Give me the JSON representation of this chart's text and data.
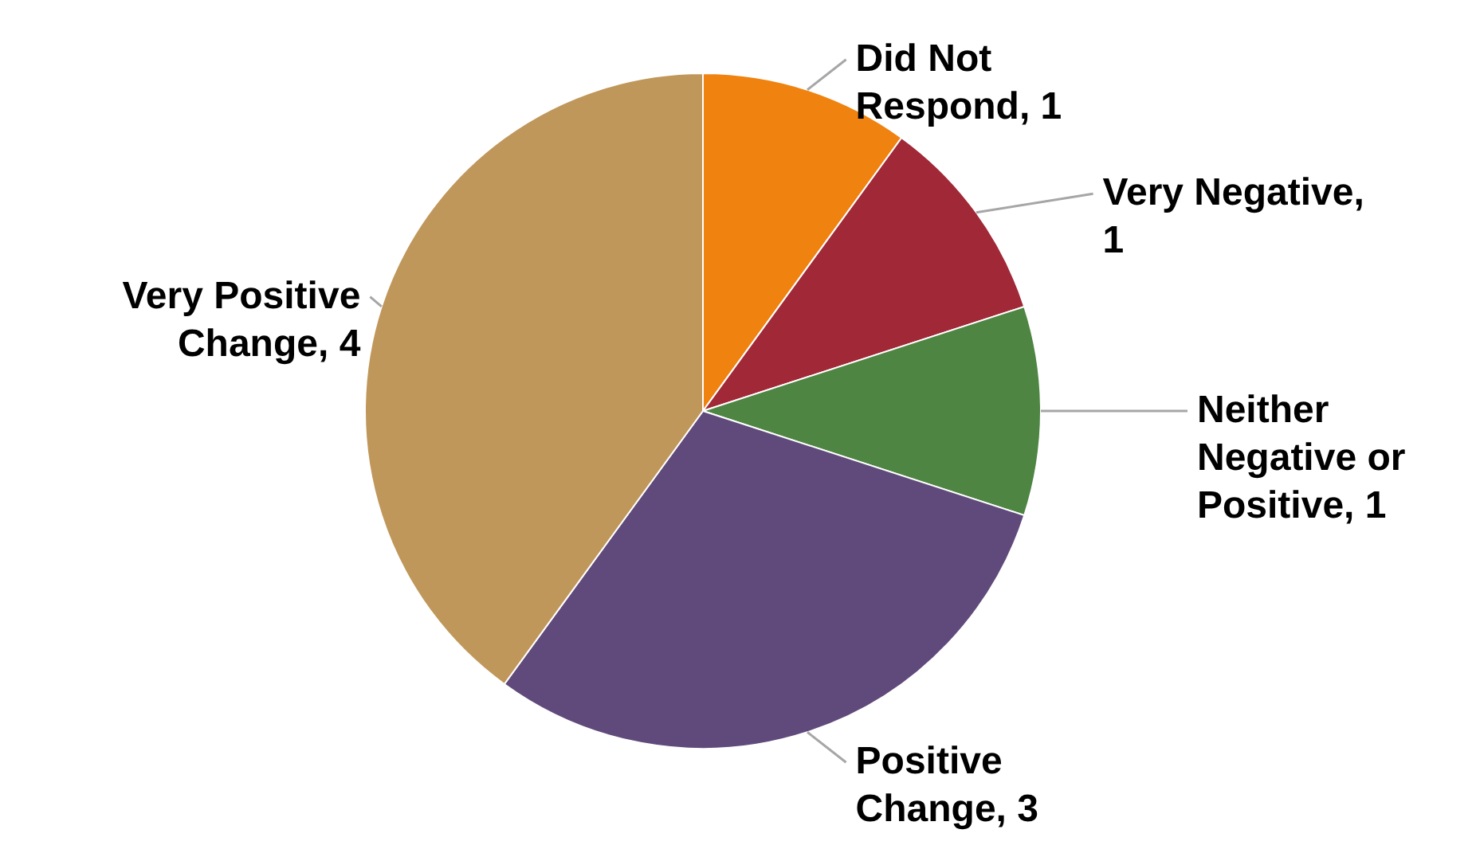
{
  "chart_data": {
    "type": "pie",
    "categories": [
      "Did Not Respond, 1",
      "Very Negative, 1",
      "Neither Negative or Positive, 1",
      "Positive Change, 3",
      "Very Positive Change, 4"
    ],
    "values": [
      1,
      1,
      1,
      3,
      4
    ],
    "colors": [
      "#f0820f",
      "#a02837",
      "#4e8542",
      "#604a7b",
      "#c0975a"
    ]
  }
}
